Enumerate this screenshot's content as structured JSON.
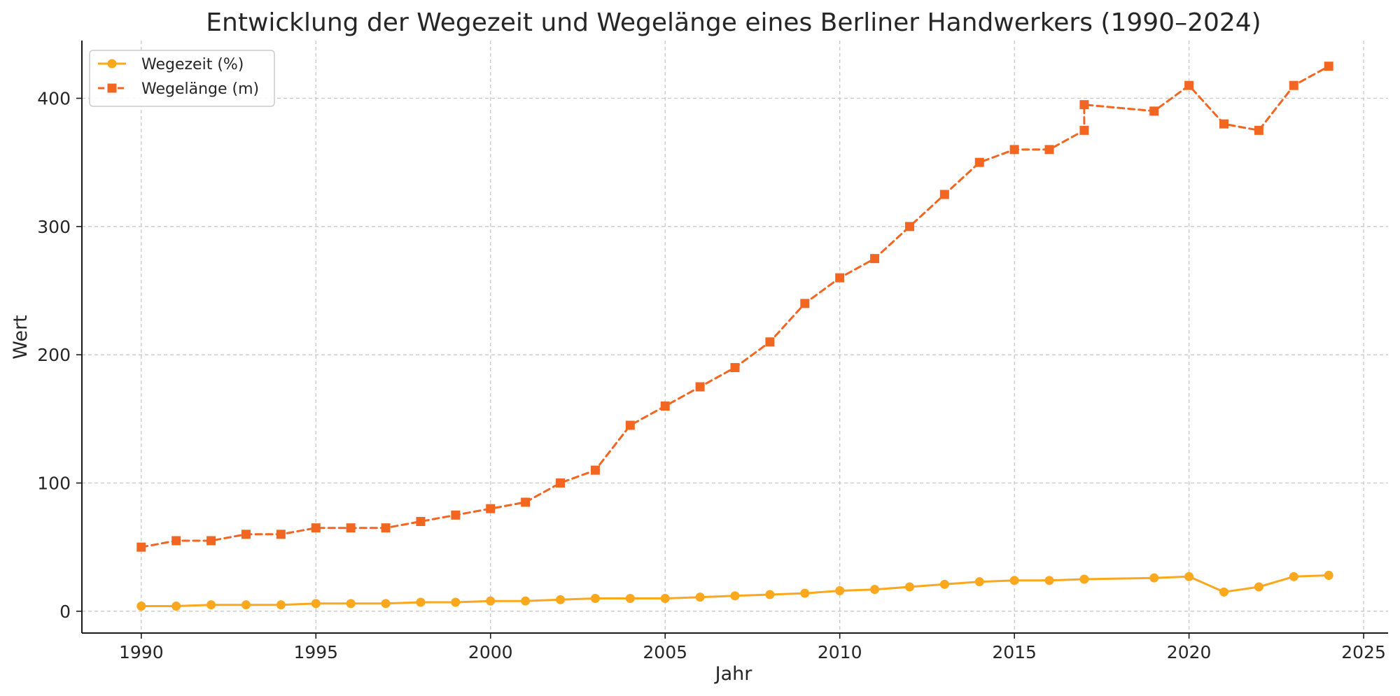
{
  "chart_data": {
    "type": "line",
    "title": "Entwicklung der Wegezeit und Wegelänge eines Berliner Handwerkers (1990–2024)",
    "xlabel": "Jahr",
    "ylabel": "Wert",
    "xlim": [
      1988.3,
      2025.7
    ],
    "ylim": [
      -17,
      445
    ],
    "xticks": [
      1990,
      1995,
      2000,
      2005,
      2010,
      2015,
      2020,
      2025
    ],
    "yticks": [
      0,
      100,
      200,
      300,
      400
    ],
    "grid": true,
    "legend_position": "top-left",
    "series": [
      {
        "name": "Wegezeit (%)",
        "color": "#FBA81E",
        "line_style": "solid",
        "marker": "circle",
        "x": [
          1990,
          1991,
          1992,
          1993,
          1994,
          1995,
          1996,
          1997,
          1998,
          1999,
          2000,
          2001,
          2002,
          2003,
          2004,
          2005,
          2006,
          2007,
          2008,
          2009,
          2010,
          2011,
          2012,
          2013,
          2014,
          2015,
          2016,
          2017,
          2019,
          2020,
          2021,
          2022,
          2023,
          2024
        ],
        "y": [
          4,
          4,
          5,
          5,
          5,
          6,
          6,
          6,
          7,
          7,
          8,
          8,
          9,
          10,
          10,
          10,
          11,
          12,
          13,
          14,
          16,
          17,
          19,
          21,
          23,
          24,
          24,
          25,
          26,
          27,
          15,
          19,
          27,
          28
        ]
      },
      {
        "name": "Wegelänge (m)",
        "color": "#F26622",
        "line_style": "dashed",
        "marker": "square",
        "x": [
          1990,
          1991,
          1992,
          1993,
          1994,
          1995,
          1996,
          1997,
          1998,
          1999,
          2000,
          2001,
          2002,
          2003,
          2004,
          2005,
          2006,
          2007,
          2008,
          2009,
          2010,
          2011,
          2012,
          2013,
          2014,
          2015,
          2016,
          2017,
          2017,
          2019,
          2020,
          2021,
          2022,
          2023,
          2024
        ],
        "y": [
          50,
          55,
          55,
          60,
          60,
          65,
          65,
          65,
          70,
          75,
          80,
          85,
          100,
          110,
          145,
          160,
          175,
          190,
          210,
          240,
          260,
          275,
          300,
          325,
          350,
          360,
          360,
          375,
          395,
          390,
          410,
          380,
          375,
          410,
          425
        ]
      }
    ]
  }
}
